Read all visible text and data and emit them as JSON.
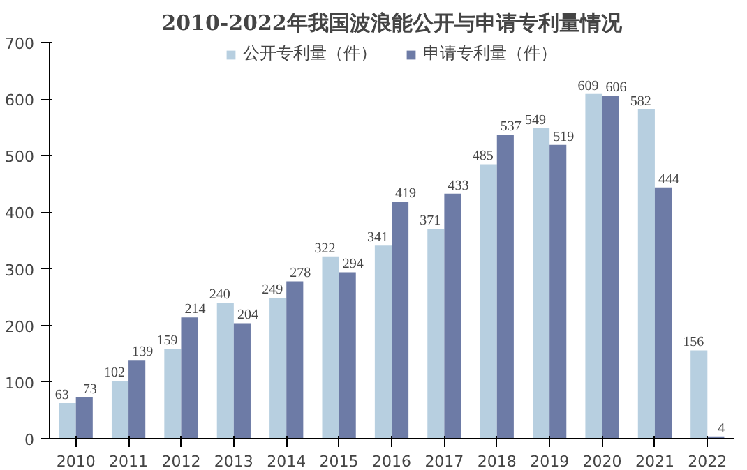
{
  "chart_data": {
    "type": "bar",
    "title": "2010-2022年我国波浪能公开与申请专利量情况",
    "categories": [
      "2010",
      "2011",
      "2012",
      "2013",
      "2014",
      "2015",
      "2016",
      "2017",
      "2018",
      "2019",
      "2020",
      "2021",
      "2022"
    ],
    "series": [
      {
        "name": "公开专利量（件）",
        "color": "#b7cfe0",
        "values": [
          63,
          102,
          159,
          240,
          249,
          322,
          341,
          371,
          485,
          549,
          609,
          582,
          156
        ]
      },
      {
        "name": "申请专利量（件）",
        "color": "#6d7ba6",
        "values": [
          73,
          139,
          214,
          204,
          278,
          294,
          419,
          433,
          537,
          519,
          606,
          444,
          4
        ]
      }
    ],
    "ylim": [
      0,
      700
    ],
    "yticks": [
      0,
      100,
      200,
      300,
      400,
      500,
      600,
      700
    ],
    "grid": false,
    "legend": "top",
    "data_labels": true
  }
}
